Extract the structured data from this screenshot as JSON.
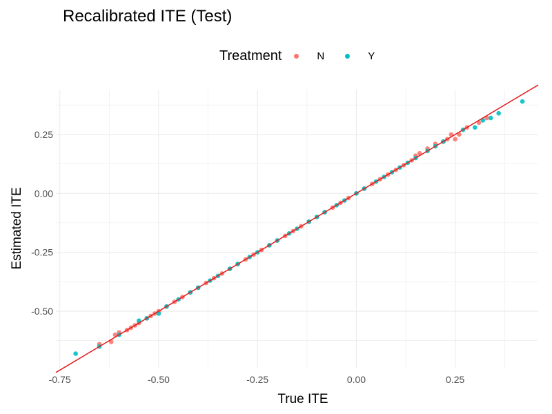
{
  "chart_data": {
    "type": "scatter",
    "title": "Recalibrated ITE (Test)",
    "xlabel": "True ITE",
    "ylabel": "Estimated ITE",
    "xlim": [
      -0.76,
      0.46
    ],
    "ylim": [
      -0.74,
      0.44
    ],
    "x_ticks": [
      -0.75,
      -0.5,
      -0.25,
      0.0,
      0.25
    ],
    "x_tick_labels": [
      "-0.75",
      "-0.50",
      "-0.25",
      "0.00",
      "0.25"
    ],
    "y_ticks": [
      -0.5,
      -0.25,
      0.0,
      0.25
    ],
    "y_tick_labels": [
      "-0.50",
      "-0.25",
      "0.00",
      "0.25"
    ],
    "grid": true,
    "legend": {
      "title": "Treatment",
      "position": "top"
    },
    "reference_line": {
      "slope": 1,
      "intercept": 0,
      "color": "#e41a1c"
    },
    "series": [
      {
        "name": "N",
        "color": "#f8766d",
        "x": [
          -0.65,
          -0.62,
          -0.61,
          -0.6,
          -0.58,
          -0.57,
          -0.56,
          -0.55,
          -0.53,
          -0.52,
          -0.51,
          -0.5,
          -0.48,
          -0.46,
          -0.44,
          -0.42,
          -0.4,
          -0.38,
          -0.36,
          -0.34,
          -0.32,
          -0.3,
          -0.28,
          -0.26,
          -0.24,
          -0.22,
          -0.2,
          -0.18,
          -0.16,
          -0.14,
          -0.12,
          -0.1,
          -0.08,
          -0.06,
          -0.04,
          -0.02,
          0.0,
          0.02,
          0.04,
          0.06,
          0.08,
          0.1,
          0.12,
          0.14,
          0.15,
          0.16,
          0.18,
          0.2,
          0.22,
          0.23,
          0.24,
          0.25,
          0.26,
          0.28,
          0.31,
          0.33
        ],
        "y": [
          -0.64,
          -0.63,
          -0.6,
          -0.59,
          -0.58,
          -0.57,
          -0.56,
          -0.55,
          -0.53,
          -0.52,
          -0.51,
          -0.5,
          -0.48,
          -0.46,
          -0.44,
          -0.42,
          -0.4,
          -0.38,
          -0.36,
          -0.34,
          -0.32,
          -0.3,
          -0.28,
          -0.26,
          -0.24,
          -0.22,
          -0.2,
          -0.18,
          -0.16,
          -0.14,
          -0.12,
          -0.1,
          -0.08,
          -0.06,
          -0.04,
          -0.02,
          0.0,
          0.02,
          0.04,
          0.06,
          0.08,
          0.1,
          0.12,
          0.14,
          0.16,
          0.17,
          0.19,
          0.21,
          0.22,
          0.23,
          0.25,
          0.23,
          0.25,
          0.28,
          0.3,
          0.32
        ]
      },
      {
        "name": "Y",
        "color": "#00bfc4",
        "x": [
          -0.71,
          -0.65,
          -0.6,
          -0.55,
          -0.53,
          -0.5,
          -0.48,
          -0.45,
          -0.42,
          -0.4,
          -0.37,
          -0.35,
          -0.32,
          -0.3,
          -0.27,
          -0.25,
          -0.22,
          -0.2,
          -0.17,
          -0.15,
          -0.12,
          -0.1,
          -0.08,
          -0.05,
          -0.03,
          0.0,
          0.02,
          0.05,
          0.07,
          0.09,
          0.11,
          0.13,
          0.15,
          0.18,
          0.2,
          0.22,
          0.27,
          0.3,
          0.32,
          0.34,
          0.36,
          0.42
        ],
        "y": [
          -0.68,
          -0.65,
          -0.6,
          -0.54,
          -0.53,
          -0.51,
          -0.48,
          -0.45,
          -0.42,
          -0.4,
          -0.37,
          -0.35,
          -0.32,
          -0.3,
          -0.27,
          -0.25,
          -0.22,
          -0.2,
          -0.17,
          -0.15,
          -0.12,
          -0.1,
          -0.08,
          -0.05,
          -0.03,
          0.0,
          0.02,
          0.05,
          0.07,
          0.09,
          0.11,
          0.13,
          0.15,
          0.18,
          0.2,
          0.22,
          0.27,
          0.28,
          0.31,
          0.32,
          0.34,
          0.39
        ]
      }
    ]
  }
}
